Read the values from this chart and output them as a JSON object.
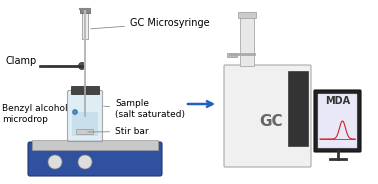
{
  "background_color": "#ffffff",
  "arrow_color": "#2060c0",
  "label_color": "#000000",
  "labels": {
    "clamp": "Clamp",
    "gc_microsyringe": "GC Microsyringe",
    "benzyl_alcohol": "Benzyl alcohol\nmicrodrop",
    "sample": "Sample\n(salt saturated)",
    "stir_bar": "Stir bar",
    "gc": "GC",
    "mda": "MDA"
  },
  "label_fontsize": 7,
  "small_fontsize": 5.5,
  "gc_label_fontsize": 11,
  "mda_label_fontsize": 7,
  "hotplate_color": "#3050a0",
  "hotplate_top_color": "#c8c8c8",
  "vial_color": "#d0e8f0",
  "vial_outline": "#888888",
  "needle_color": "#aaaaaa",
  "clamp_color": "#333333",
  "stir_bar_color": "#cccccc",
  "gc_body_color": "#f0f0f0",
  "gc_outline_color": "#aaaaaa",
  "monitor_color": "#222222",
  "monitor_screen_color": "#e8e8f8",
  "peak_color": "#cc2222",
  "line_annotation_color": "#888888"
}
